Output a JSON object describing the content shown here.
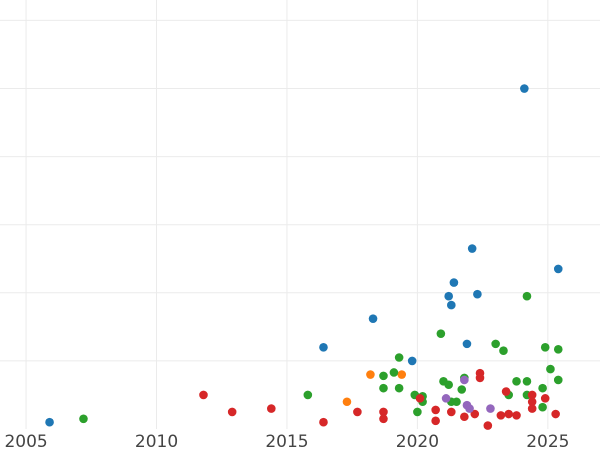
{
  "chart_data": {
    "type": "scatter",
    "title": "",
    "xlabel": "",
    "ylabel": "",
    "xlim": [
      2004.0,
      2027.0
    ],
    "ylim": [
      0.0,
      6.3
    ],
    "x_ticks": [
      2005,
      2010,
      2015,
      2020,
      2025
    ],
    "x_tick_labels": [
      "2005",
      "2010",
      "2015",
      "2020",
      "2025"
    ],
    "y_gridlines": [
      1,
      2,
      3,
      4,
      5,
      6
    ],
    "grid": true,
    "legend": "none",
    "series": [
      {
        "color": "#1f77b4",
        "points": [
          {
            "x": 2005.9,
            "y": 0.1
          },
          {
            "x": 2016.4,
            "y": 1.2
          },
          {
            "x": 2018.3,
            "y": 1.62
          },
          {
            "x": 2019.8,
            "y": 1.0
          },
          {
            "x": 2021.2,
            "y": 1.95
          },
          {
            "x": 2021.3,
            "y": 1.82
          },
          {
            "x": 2021.4,
            "y": 2.15
          },
          {
            "x": 2021.9,
            "y": 1.25
          },
          {
            "x": 2022.1,
            "y": 2.65
          },
          {
            "x": 2022.3,
            "y": 1.98
          },
          {
            "x": 2024.1,
            "y": 5.0
          },
          {
            "x": 2025.4,
            "y": 2.35
          }
        ]
      },
      {
        "color": "#ff7f0e",
        "points": [
          {
            "x": 2017.3,
            "y": 0.4
          },
          {
            "x": 2018.2,
            "y": 0.8
          },
          {
            "x": 2019.4,
            "y": 0.8
          }
        ]
      },
      {
        "color": "#2ca02c",
        "points": [
          {
            "x": 2007.2,
            "y": 0.15
          },
          {
            "x": 2015.8,
            "y": 0.5
          },
          {
            "x": 2018.7,
            "y": 0.78
          },
          {
            "x": 2018.7,
            "y": 0.6
          },
          {
            "x": 2019.1,
            "y": 0.83
          },
          {
            "x": 2019.3,
            "y": 1.05
          },
          {
            "x": 2019.3,
            "y": 0.6
          },
          {
            "x": 2019.9,
            "y": 0.5
          },
          {
            "x": 2020.0,
            "y": 0.25
          },
          {
            "x": 2020.2,
            "y": 0.48
          },
          {
            "x": 2020.2,
            "y": 0.4
          },
          {
            "x": 2020.9,
            "y": 1.4
          },
          {
            "x": 2021.0,
            "y": 0.7
          },
          {
            "x": 2021.2,
            "y": 0.65
          },
          {
            "x": 2021.3,
            "y": 0.4
          },
          {
            "x": 2021.5,
            "y": 0.4
          },
          {
            "x": 2021.7,
            "y": 0.58
          },
          {
            "x": 2021.8,
            "y": 0.75
          },
          {
            "x": 2023.0,
            "y": 1.25
          },
          {
            "x": 2023.3,
            "y": 1.15
          },
          {
            "x": 2023.5,
            "y": 0.5
          },
          {
            "x": 2023.8,
            "y": 0.7
          },
          {
            "x": 2024.2,
            "y": 0.7
          },
          {
            "x": 2024.2,
            "y": 1.95
          },
          {
            "x": 2024.2,
            "y": 0.5
          },
          {
            "x": 2024.8,
            "y": 0.6
          },
          {
            "x": 2024.8,
            "y": 0.32
          },
          {
            "x": 2024.9,
            "y": 1.2
          },
          {
            "x": 2025.1,
            "y": 0.88
          },
          {
            "x": 2025.4,
            "y": 0.72
          },
          {
            "x": 2025.4,
            "y": 1.17
          }
        ]
      },
      {
        "color": "#d62728",
        "points": [
          {
            "x": 2011.8,
            "y": 0.5
          },
          {
            "x": 2012.9,
            "y": 0.25
          },
          {
            "x": 2014.4,
            "y": 0.3
          },
          {
            "x": 2016.4,
            "y": 0.1
          },
          {
            "x": 2017.7,
            "y": 0.25
          },
          {
            "x": 2018.7,
            "y": 0.25
          },
          {
            "x": 2018.7,
            "y": 0.15
          },
          {
            "x": 2020.1,
            "y": 0.45
          },
          {
            "x": 2020.7,
            "y": 0.28
          },
          {
            "x": 2020.7,
            "y": 0.12
          },
          {
            "x": 2021.3,
            "y": 0.25
          },
          {
            "x": 2021.8,
            "y": 0.18
          },
          {
            "x": 2022.2,
            "y": 0.22
          },
          {
            "x": 2022.4,
            "y": 0.75
          },
          {
            "x": 2022.4,
            "y": 0.82
          },
          {
            "x": 2022.7,
            "y": 0.05
          },
          {
            "x": 2023.2,
            "y": 0.2
          },
          {
            "x": 2023.4,
            "y": 0.55
          },
          {
            "x": 2023.5,
            "y": 0.22
          },
          {
            "x": 2023.8,
            "y": 0.2
          },
          {
            "x": 2024.4,
            "y": 0.3
          },
          {
            "x": 2024.4,
            "y": 0.4
          },
          {
            "x": 2024.4,
            "y": 0.5
          },
          {
            "x": 2024.9,
            "y": 0.45
          },
          {
            "x": 2025.3,
            "y": 0.22
          }
        ]
      },
      {
        "color": "#9467bd",
        "points": [
          {
            "x": 2021.1,
            "y": 0.45
          },
          {
            "x": 2021.8,
            "y": 0.72
          },
          {
            "x": 2021.9,
            "y": 0.35
          },
          {
            "x": 2022.0,
            "y": 0.3
          },
          {
            "x": 2022.8,
            "y": 0.3
          }
        ]
      }
    ]
  }
}
